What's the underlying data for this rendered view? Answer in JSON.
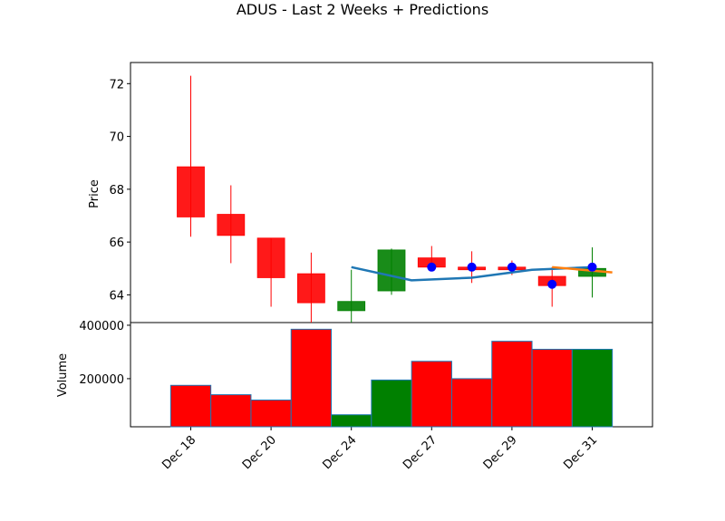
{
  "chart_data": {
    "type": "candlestick",
    "title": "ADUS - Last 2 Weeks + Predictions",
    "price_panel": {
      "ylabel": "Price",
      "yticks": [
        64,
        66,
        68,
        70,
        72
      ],
      "ylim": [
        62.95,
        72.8
      ],
      "candles": [
        {
          "open": 68.85,
          "high": 72.3,
          "low": 66.2,
          "close": 66.95
        },
        {
          "open": 67.05,
          "high": 68.15,
          "low": 65.2,
          "close": 66.25
        },
        {
          "open": 66.15,
          "high": 66.15,
          "low": 63.55,
          "close": 64.65
        },
        {
          "open": 64.8,
          "high": 65.6,
          "low": 62.95,
          "close": 63.7
        },
        {
          "open": 63.4,
          "high": 64.95,
          "low": 62.95,
          "close": 63.75
        },
        {
          "open": 64.15,
          "high": 65.75,
          "low": 64.0,
          "close": 65.7
        },
        {
          "open": 65.4,
          "high": 65.85,
          "low": 64.9,
          "close": 65.05
        },
        {
          "open": 65.05,
          "high": 65.65,
          "low": 64.45,
          "close": 64.95
        },
        {
          "open": 65.05,
          "high": 65.3,
          "low": 64.75,
          "close": 64.95
        },
        {
          "open": 64.7,
          "high": 65.05,
          "low": 63.55,
          "close": 64.35
        },
        {
          "open": 64.7,
          "high": 65.8,
          "low": 63.9,
          "close": 65.0
        }
      ],
      "prediction_line": {
        "start_index": 4,
        "values": [
          65.05,
          64.55,
          64.65,
          64.95,
          65.05
        ]
      },
      "prediction_line_2": {
        "start_index": 9,
        "values": [
          65.05,
          64.85
        ]
      },
      "prediction_markers": [
        {
          "index": 6,
          "value": 65.05
        },
        {
          "index": 7,
          "value": 65.05
        },
        {
          "index": 8,
          "value": 65.05
        },
        {
          "index": 9,
          "value": 64.4
        },
        {
          "index": 10,
          "value": 65.05
        }
      ]
    },
    "volume_panel": {
      "ylabel": "Volume",
      "yticks": [
        200000,
        400000
      ],
      "ylim": [
        20000,
        410000
      ],
      "volumes": [
        175000,
        140000,
        120000,
        385000,
        65000,
        195000,
        265000,
        200000,
        340000,
        310000,
        310000
      ]
    },
    "x_tick_labels": [
      {
        "index": 0,
        "label": "Dec 18"
      },
      {
        "index": 2,
        "label": "Dec 20"
      },
      {
        "index": 4,
        "label": "Dec 24"
      },
      {
        "index": 6,
        "label": "Dec 27"
      },
      {
        "index": 8,
        "label": "Dec 29"
      },
      {
        "index": 10,
        "label": "Dec 31"
      }
    ],
    "colors": {
      "up": "#008000",
      "down": "#ff0000",
      "volume_edge": "#1f77b4",
      "prediction_line": "#1f77b4",
      "prediction_line_2": "#ff7f0e",
      "marker": "#0000ff"
    }
  }
}
